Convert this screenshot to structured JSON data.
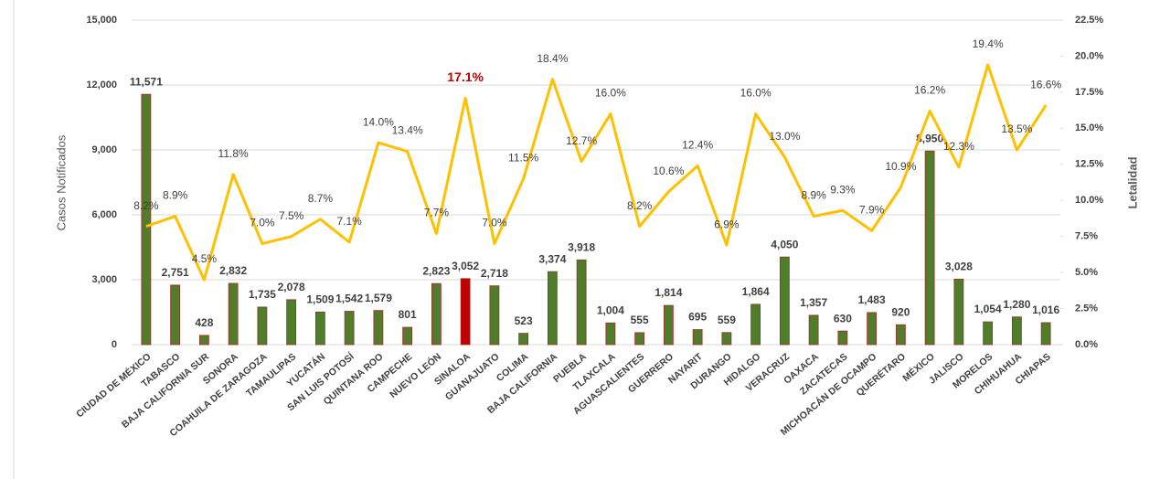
{
  "chart_data": {
    "type": "bar_line",
    "categories": [
      "CIUDAD DE MÉXICO",
      "TABASCO",
      "BAJA CALIFORNIA SUR",
      "SONORA",
      "COAHUILA DE ZARAGOZA",
      "TAMAULIPAS",
      "YUCATÁN",
      "SAN LUIS POTOSÍ",
      "QUINTANA ROO",
      "CAMPECHE",
      "NUEVO LEÓN",
      "SINALOA",
      "GUANAJUATO",
      "COLIMA",
      "BAJA CALIFORNIA",
      "PUEBLA",
      "TLAXCALA",
      "AGUASCALIENTES",
      "GUERRERO",
      "NAYARIT",
      "DURANGO",
      "HIDALGO",
      "VERACRUZ",
      "OAXACA",
      "ZACATECAS",
      "MICHOACÁN DE OCAMPO",
      "QUERÉTARO",
      "MÉXICO",
      "JALISCO",
      "MORELOS",
      "CHIHUAHUA",
      "CHIAPAS"
    ],
    "series": [
      {
        "type": "bar",
        "color": "#4f7d2a",
        "edge_color": "#a52a2a",
        "values": [
          11571,
          2751,
          428,
          2832,
          1735,
          2078,
          1509,
          1542,
          1579,
          801,
          2823,
          3052,
          2718,
          523,
          3374,
          3918,
          1004,
          555,
          1814,
          695,
          559,
          1864,
          4050,
          1357,
          630,
          1483,
          920,
          8950,
          3028,
          1054,
          1280,
          1016
        ],
        "value_labels": [
          "11,571",
          "2,751",
          "428",
          "2,832",
          "1,735",
          "2,078",
          "1,509",
          "1,542",
          "1,579",
          "801",
          "2,823",
          "3,052",
          "2,718",
          "523",
          "3,374",
          "3,918",
          "1,004",
          "555",
          "1,814",
          "695",
          "559",
          "1,864",
          "4,050",
          "1,357",
          "630",
          "1,483",
          "920",
          "8,950",
          "3,028",
          "1,054",
          "1,280",
          "1,016"
        ]
      },
      {
        "type": "line",
        "axis": "y2",
        "color": "#ffc000",
        "values": [
          8.2,
          8.9,
          4.5,
          11.8,
          7.0,
          7.5,
          8.7,
          7.1,
          14.0,
          13.4,
          7.7,
          17.1,
          7.0,
          11.5,
          18.4,
          12.7,
          16.0,
          8.2,
          10.6,
          12.4,
          6.9,
          16.0,
          13.0,
          8.9,
          9.3,
          7.9,
          10.9,
          16.2,
          12.3,
          19.4,
          13.5,
          16.6
        ],
        "value_labels": [
          "8.2%",
          "8.9%",
          "4.5%",
          "11.8%",
          "7.0%",
          "7.5%",
          "8.7%",
          "7.1%",
          "14.0%",
          "13.4%",
          "7.7%",
          "17.1%",
          "7.0%",
          "11.5%",
          "18.4%",
          "12.7%",
          "16.0%",
          "8.2%",
          "10.6%",
          "12.4%",
          "6.9%",
          "16.0%",
          "13.0%",
          "8.9%",
          "9.3%",
          "7.9%",
          "10.9%",
          "16.2%",
          "12.3%",
          "19.4%",
          "13.5%",
          "16.6%"
        ]
      }
    ],
    "highlight": {
      "index": 11,
      "color": "#c00000"
    },
    "ylabel": "Casos Notificados",
    "y2label": "Letalidad",
    "ylim": [
      0,
      15000
    ],
    "yticks": [
      0,
      {
        "value": 3000,
        "label": "3,000"
      },
      {
        "value": 6000,
        "label": "6,000"
      },
      {
        "value": 9000,
        "label": "9,000"
      },
      {
        "value": 12000,
        "label": "12,000"
      },
      {
        "value": 15000,
        "label": "15,000"
      }
    ],
    "y2lim": [
      0,
      22.5
    ],
    "y2ticks": [
      {
        "value": 0,
        "label": "0.0%"
      },
      {
        "value": 2.5,
        "label": "2.5%"
      },
      {
        "value": 5,
        "label": "5.0%"
      },
      {
        "value": 7.5,
        "label": "7.5%"
      },
      {
        "value": 10,
        "label": "10.0%"
      },
      {
        "value": 12.5,
        "label": "12.5%"
      },
      {
        "value": 15,
        "label": "15.0%"
      },
      {
        "value": 17.5,
        "label": "17.5%"
      },
      {
        "value": 20,
        "label": "20.0%"
      },
      {
        "value": 22.5,
        "label": "22.5%"
      }
    ],
    "grid": true
  }
}
